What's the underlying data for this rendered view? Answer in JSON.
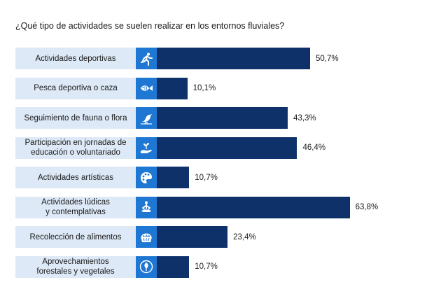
{
  "chart_data": {
    "type": "bar",
    "orientation": "horizontal",
    "title": "¿Qué tipo de actividades se suelen realizar en los entornos fluviales?",
    "categories": [
      "Actividades deportivas",
      "Pesca deportiva o caza",
      "Seguimiento de fauna o flora",
      "Participación en jornadas de\neducación o voluntariado",
      "Actividades artísticas",
      "Actividades lúdicas\ny contemplativas",
      "Recolección de alimentos",
      "Aprovechamientos\nforestales y vegetales"
    ],
    "values": [
      50.7,
      10.1,
      43.3,
      46.4,
      10.7,
      63.8,
      23.4,
      10.7
    ],
    "value_labels": [
      "50,7%",
      "10,1%",
      "43,3%",
      "46,4%",
      "10,7%",
      "63,8%",
      "23,4%",
      "10,7%"
    ],
    "icons": [
      "running-icon",
      "fish-icon",
      "bird-icon",
      "hand-plant-icon",
      "palette-icon",
      "meditation-icon",
      "basket-icon",
      "tree-icon"
    ],
    "xlim": [
      0,
      100
    ],
    "grid": false,
    "colors": {
      "bar": "#0e3169",
      "icon_bg": "#1f77d4",
      "label_bg": "#dde9f7"
    }
  }
}
